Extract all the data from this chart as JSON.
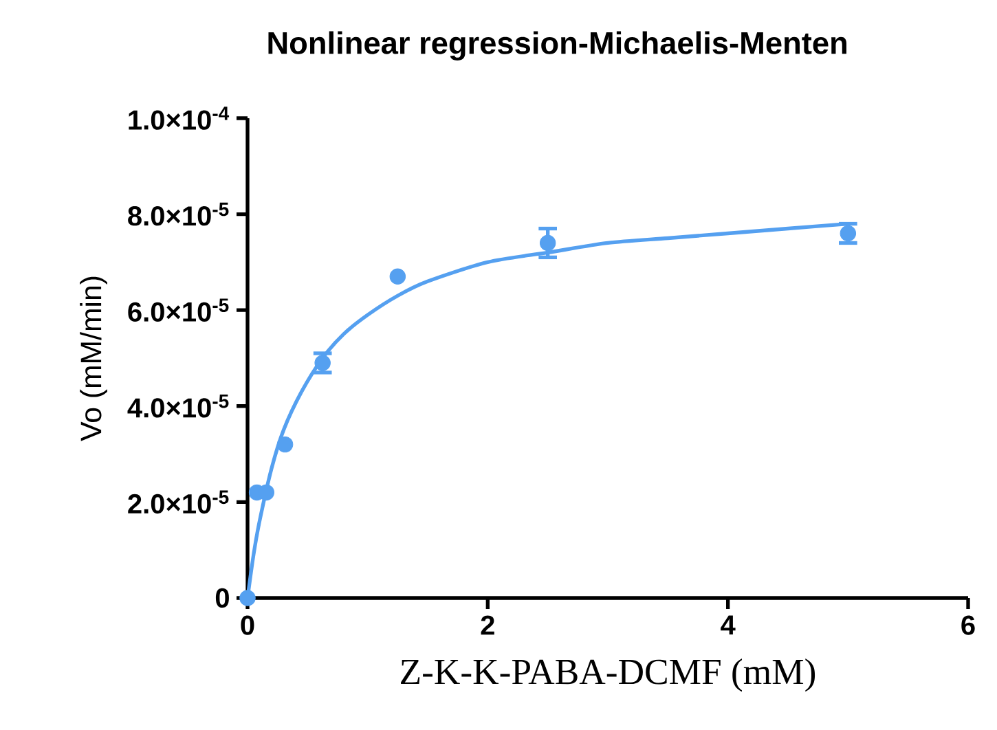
{
  "chart_data": {
    "type": "scatter",
    "title": "Nonlinear regression-Michaelis-Menten",
    "xlabel": "Z-K-K-PABA-DCMF (mM)",
    "ylabel": "Vo (mM/min)",
    "xlim": [
      0,
      6
    ],
    "xticks": [
      0,
      2,
      4,
      6
    ],
    "ylim": [
      0,
      0.0001
    ],
    "yticks": [
      0,
      {
        "value": 2e-05,
        "label": "2.0×10$^{-5}$"
      },
      {
        "value": 4e-05,
        "label": "4.0×10$^{-5}$"
      },
      {
        "value": 6e-05,
        "label": "6.0×10$^{-5}$"
      },
      {
        "value": 8e-05,
        "label": "8.0×10$^{-5}$"
      },
      {
        "value": 0.0001,
        "label": "1.0×10$^{-4}$"
      }
    ],
    "series": [
      {
        "color": "#55a0f0",
        "marker": "circle",
        "x": [
          0,
          0.078,
          0.156,
          0.3125,
          0.625,
          1.25,
          2.5,
          5
        ],
        "values": [
          0,
          2.2e-05,
          2.2e-05,
          3.2e-05,
          4.9e-05,
          6.7e-05,
          7.4e-05,
          7.6e-05
        ],
        "errors": [
          null,
          null,
          null,
          null,
          2e-06,
          null,
          3e-06,
          2e-06
        ]
      },
      {
        "type": "line",
        "color": "#55a0f0",
        "line_style": "solid",
        "x": [
          0,
          0.05,
          0.1,
          0.2,
          0.3,
          0.45,
          0.625,
          0.8,
          1,
          1.25,
          1.5,
          2,
          2.5,
          3,
          3.5,
          4,
          4.5,
          5
        ],
        "values": [
          0,
          9e-06,
          1.6e-05,
          2.7e-05,
          3.5e-05,
          4.3e-05,
          5e-05,
          5.5e-05,
          5.9e-05,
          6.3e-05,
          6.6e-05,
          7e-05,
          7.2e-05,
          7.4e-05,
          7.5e-05,
          7.6e-05,
          7.7e-05,
          7.8e-05
        ]
      }
    ]
  }
}
